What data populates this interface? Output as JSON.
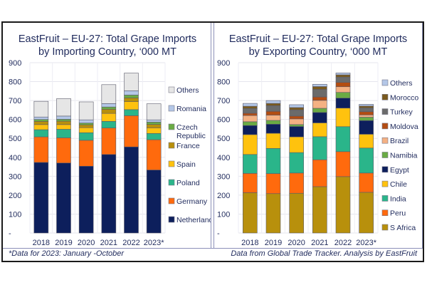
{
  "chart_data": [
    {
      "type": "bar",
      "stacked": true,
      "title": "EastFruit – EU-27: Total Grape Imports by Importing Country, ‘000 MT",
      "title_lines": [
        "EastFruit – EU-27: Total Grape Imports",
        "by Importing Country, ‘000 MT"
      ],
      "xlabel": "",
      "ylabel": "",
      "ylim": [
        0,
        900
      ],
      "yticks": [
        "-",
        "100",
        "200",
        "300",
        "400",
        "500",
        "600",
        "700",
        "800",
        "900"
      ],
      "grid": true,
      "legend_position": "right",
      "categories": [
        "2018",
        "2019",
        "2020",
        "2021",
        "2022",
        "2023*"
      ],
      "series": [
        {
          "name": "Netherlands",
          "color": "#0d1f5c",
          "values": [
            373,
            370,
            353,
            415,
            455,
            333
          ]
        },
        {
          "name": "Germany",
          "color": "#ff6a0d",
          "values": [
            135,
            133,
            137,
            140,
            165,
            160
          ]
        },
        {
          "name": "Poland",
          "color": "#2ab58a",
          "values": [
            38,
            45,
            40,
            35,
            32,
            33
          ]
        },
        {
          "name": "Spain",
          "color": "#ffc20e",
          "values": [
            27,
            25,
            27,
            42,
            42,
            30
          ]
        },
        {
          "name": "France",
          "color": "#b8900c",
          "values": [
            17,
            18,
            15,
            22,
            20,
            18
          ]
        },
        {
          "name": "Czech Republic",
          "color": "#6aab44",
          "values": [
            10,
            10,
            9,
            12,
            15,
            12
          ]
        },
        {
          "name": "Romania",
          "color": "#b4c7e7",
          "values": [
            13,
            17,
            17,
            18,
            23,
            12
          ]
        },
        {
          "name": "Others",
          "color": "#e6e6e6",
          "values": [
            83,
            92,
            95,
            100,
            93,
            85
          ]
        }
      ],
      "legend": [
        "Others",
        "Romania",
        "Czech Republic",
        "France",
        "Spain",
        "Poland",
        "Germany",
        "Netherlands"
      ]
    },
    {
      "type": "bar",
      "stacked": true,
      "title": "EastFruit – EU-27: Total Grape Imports by Exporting Country, ‘000 MT",
      "title_lines": [
        "EastFruit – EU-27: Total Grape Imports",
        "by Exporting Country, ‘000 MT"
      ],
      "xlabel": "",
      "ylabel": "",
      "ylim": [
        0,
        900
      ],
      "yticks": [
        "-",
        "100",
        "200",
        "300",
        "400",
        "500",
        "600",
        "700",
        "800",
        "900"
      ],
      "grid": true,
      "legend_position": "right",
      "categories": [
        "2018",
        "2019",
        "2020",
        "2021",
        "2022",
        "2023*"
      ],
      "series": [
        {
          "name": "S Africa",
          "color": "#b8900c",
          "values": [
            213,
            208,
            210,
            245,
            298,
            215
          ]
        },
        {
          "name": "Peru",
          "color": "#ff6a0d",
          "values": [
            102,
            106,
            107,
            142,
            132,
            102
          ]
        },
        {
          "name": "India",
          "color": "#2ab58a",
          "values": [
            100,
            133,
            108,
            122,
            132,
            132
          ]
        },
        {
          "name": "Chile",
          "color": "#ffc20e",
          "values": [
            105,
            80,
            83,
            73,
            98,
            73
          ]
        },
        {
          "name": "Egypt",
          "color": "#0d1f5c",
          "values": [
            48,
            48,
            55,
            55,
            53,
            72
          ]
        },
        {
          "name": "Namibia",
          "color": "#6aab44",
          "values": [
            20,
            20,
            10,
            22,
            30,
            18
          ]
        },
        {
          "name": "Brazil",
          "color": "#f4b183",
          "values": [
            33,
            28,
            30,
            42,
            30,
            12
          ]
        },
        {
          "name": "Moldova",
          "color": "#b34d12",
          "values": [
            12,
            20,
            15,
            18,
            23,
            17
          ]
        },
        {
          "name": "Turkey",
          "color": "#6b6b6b",
          "values": [
            25,
            30,
            33,
            40,
            28,
            20
          ]
        },
        {
          "name": "Morocco",
          "color": "#7a5a1e",
          "values": [
            12,
            12,
            12,
            15,
            12,
            10
          ]
        },
        {
          "name": "Others",
          "color": "#b4c7e7",
          "values": [
            15,
            15,
            15,
            12,
            10,
            9
          ]
        }
      ],
      "legend": [
        "Others",
        "Morocco",
        "Turkey",
        "Moldova",
        "Brazil",
        "Namibia",
        "Egypt",
        "Chile",
        "India",
        "Peru",
        "S Africa"
      ]
    }
  ],
  "footnotes": {
    "left": "*Data for 2023: January -October",
    "right": "Data from Global Trade Tracker. Analysis by EastFruit"
  }
}
